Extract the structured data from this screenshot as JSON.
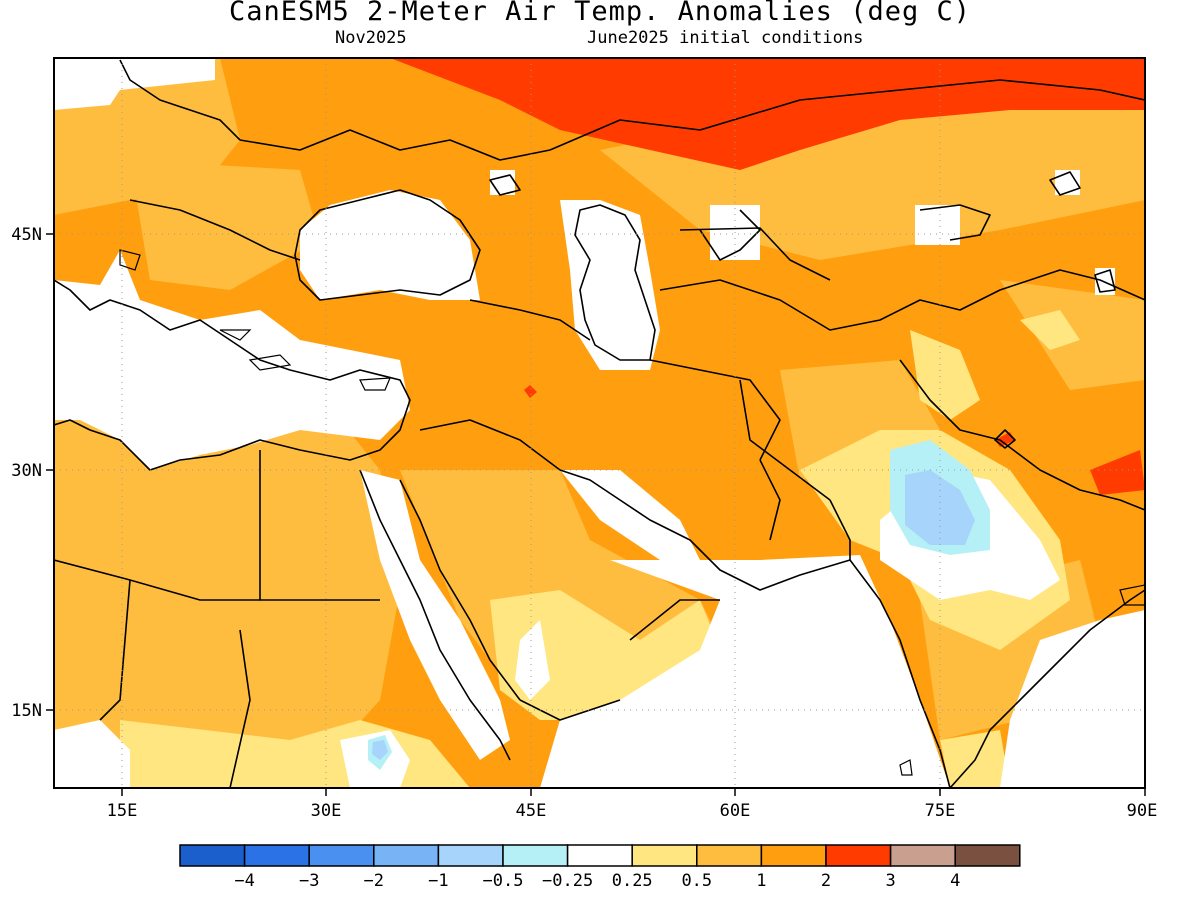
{
  "title": "CanESM5 2-Meter Air Temp. Anomalies (deg C)",
  "subtitle_left": "Nov2025",
  "subtitle_right": "June2025 initial conditions",
  "lon_labels": [
    "15E",
    "30E",
    "45E",
    "60E",
    "75E",
    "90E"
  ],
  "lat_labels": [
    "45N",
    "30N",
    "15N"
  ],
  "colorbar": {
    "colors": [
      "#1a5fcc",
      "#2a72e6",
      "#4a90f0",
      "#78b4f5",
      "#a6d4fa",
      "#b4f0f5",
      "#ffffff",
      "#ffe680",
      "#ffbd40",
      "#ff9f0f",
      "#ff3b00",
      "#c9a090",
      "#7a5040"
    ],
    "labels": [
      "−4",
      "−3",
      "−2",
      "−1",
      "−0.5",
      "−0.25",
      "0.25",
      "0.5",
      "1",
      "2",
      "3",
      "4"
    ]
  }
}
